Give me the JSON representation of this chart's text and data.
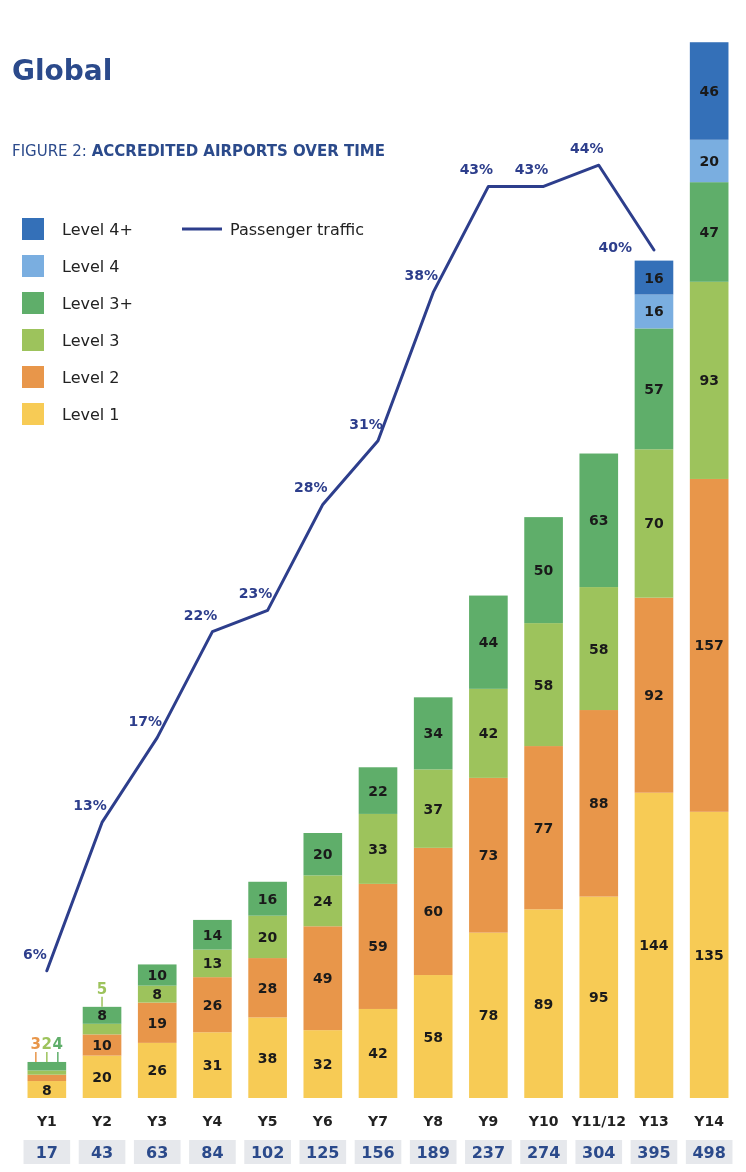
{
  "chart_data": {
    "type": "bar",
    "title": "Global",
    "subtitle": "FIGURE 2: ACCREDITED AIRPORTS OVER TIME",
    "categories": [
      "Y1",
      "Y2",
      "Y3",
      "Y4",
      "Y5",
      "Y6",
      "Y7",
      "Y8",
      "Y9",
      "Y10",
      "Y11/12",
      "Y13",
      "Y14"
    ],
    "stacked": true,
    "data_labels": true,
    "legend": "top left",
    "tick_labels": "x",
    "ylim": [
      0,
      500
    ],
    "y2lim": [
      0,
      50
    ],
    "series": [
      {
        "name": "Level 1",
        "color": "#f7cb55",
        "values": [
          8,
          20,
          26,
          31,
          38,
          32,
          42,
          58,
          78,
          89,
          95,
          144,
          135
        ]
      },
      {
        "name": "Level 2",
        "color": "#e8964a",
        "values": [
          3,
          10,
          19,
          26,
          28,
          49,
          59,
          60,
          73,
          77,
          88,
          92,
          157
        ]
      },
      {
        "name": "Level 3",
        "color": "#9dc35c",
        "values": [
          2,
          5,
          8,
          13,
          20,
          24,
          33,
          37,
          42,
          58,
          58,
          70,
          93
        ]
      },
      {
        "name": "Level 3+",
        "color": "#5fae6a",
        "values": [
          4,
          8,
          10,
          14,
          16,
          20,
          22,
          34,
          44,
          50,
          63,
          57,
          47
        ]
      },
      {
        "name": "Level 4",
        "color": "#7aaee0",
        "values": [
          null,
          null,
          null,
          null,
          null,
          null,
          null,
          null,
          null,
          null,
          null,
          16,
          20
        ]
      },
      {
        "name": "Level 4+",
        "color": "#3470b8",
        "values": [
          null,
          null,
          null,
          null,
          null,
          null,
          null,
          null,
          null,
          null,
          null,
          16,
          46
        ]
      },
      {
        "name": "Passenger traffic",
        "type": "line",
        "axis": "y2",
        "color": "#2d3e8c",
        "values": [
          6,
          13,
          17,
          22,
          23,
          28,
          31,
          38,
          43,
          43,
          44,
          40,
          null
        ],
        "value_labels": [
          "6%",
          "13%",
          "17%",
          "22%",
          "23%",
          "28%",
          "31%",
          "38%",
          "43%",
          "43%",
          "44%",
          "40%",
          null
        ]
      }
    ],
    "totals": [
      "17",
      "43",
      "63",
      "84",
      "102",
      "125",
      "156",
      "189",
      "237",
      "274",
      "304",
      "395",
      "498"
    ]
  }
}
